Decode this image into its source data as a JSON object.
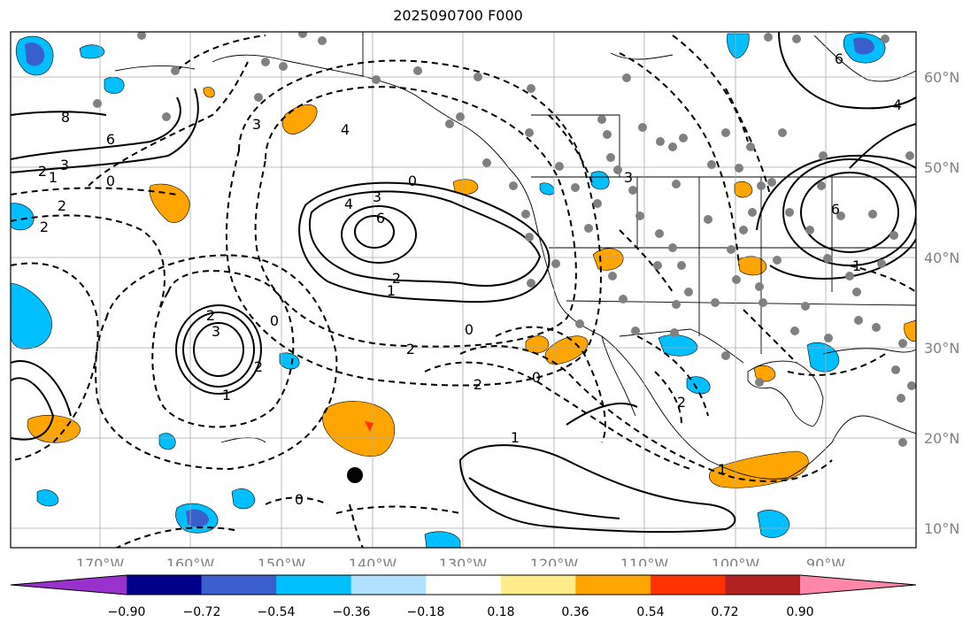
{
  "title": "2025090700 F000",
  "lon_labels": [
    "170°W",
    "160°W",
    "150°W",
    "140°W",
    "130°W",
    "120°W",
    "110°W",
    "100°W",
    "90°W"
  ],
  "lat_labels": [
    "60°N",
    "50°N",
    "40°N",
    "30°N",
    "20°N",
    "10°N"
  ],
  "colorbar": {
    "colors": [
      "#9932cc",
      "#00008b",
      "#3a5fcd",
      "#00bfff",
      "#b0e2ff",
      "#ffffff",
      "#ffec8b",
      "#ffa500",
      "#ff3300",
      "#b22222",
      "#ff88aa"
    ],
    "tick_labels": [
      "−0.90",
      "−0.72",
      "−0.54",
      "−0.36",
      "−0.18",
      "0.18",
      "0.36",
      "0.54",
      "0.72",
      "0.90"
    ]
  },
  "contour_labels": [
    "8",
    "6",
    "3",
    "2",
    "1",
    "0",
    "2",
    "2",
    "4",
    "3",
    "0",
    "3",
    "4",
    "6",
    "2",
    "1",
    "3",
    "2",
    "0",
    "2",
    "1",
    "0",
    "2",
    "1",
    "0",
    "1",
    "2",
    "6",
    "4",
    "6",
    "1",
    "0",
    "3",
    "2"
  ],
  "colors": {
    "cold": "#00bfff",
    "deep_cold": "#3a5fcd",
    "warm": "#ffa500",
    "dots": "#808080",
    "grid": "#aaaaaa"
  }
}
